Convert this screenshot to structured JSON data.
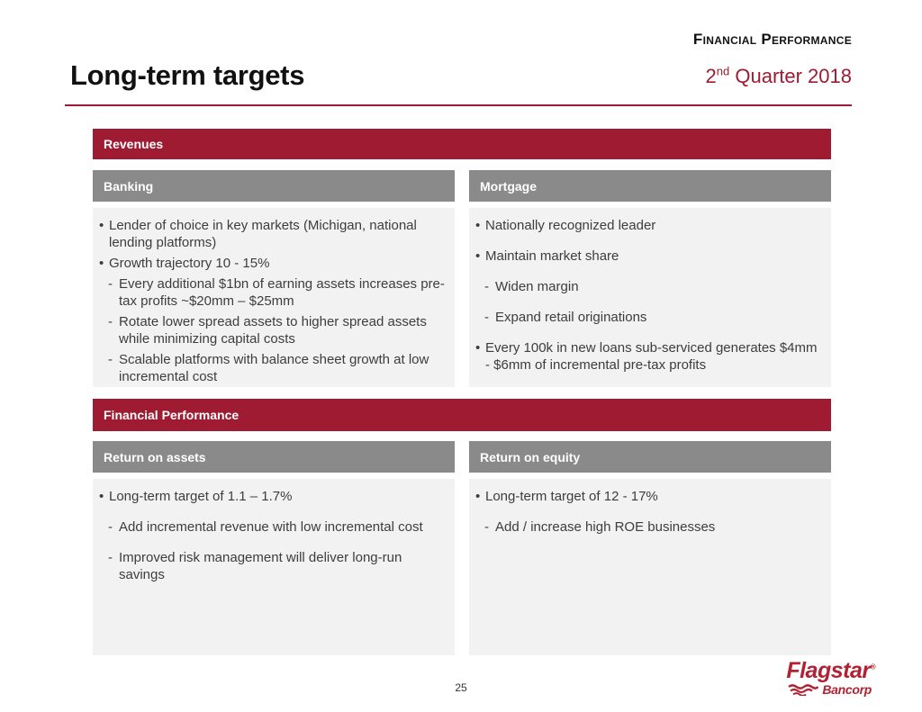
{
  "header": {
    "eyebrow": "Financial Performance",
    "title": "Long-term targets",
    "subtitle_num": "2",
    "subtitle_sup": "nd",
    "subtitle_rest": " Quarter 2018"
  },
  "bullet_glyphs": {
    "1": "•",
    "2": "-"
  },
  "sections": [
    {
      "banner": "Revenues",
      "columns": [
        {
          "header": "Banking",
          "bullets": [
            {
              "level": 1,
              "text": "Lender of choice in key markets (Michigan, national lending platforms)"
            },
            {
              "level": 1,
              "text": "Growth trajectory 10 - 15%"
            },
            {
              "level": 2,
              "text": "Every additional $1bn of earning assets increases pre-tax profits ~$20mm – $25mm"
            },
            {
              "level": 2,
              "text": "Rotate lower spread assets to higher spread assets while minimizing capital costs"
            },
            {
              "level": 2,
              "text": "Scalable platforms with balance sheet growth at low incremental cost"
            }
          ]
        },
        {
          "header": "Mortgage",
          "bullets": [
            {
              "level": 1,
              "text": "Nationally recognized leader"
            },
            {
              "level": 1,
              "text": "Maintain market share"
            },
            {
              "level": 2,
              "text": "Widen margin"
            },
            {
              "level": 2,
              "text": "Expand retail originations"
            },
            {
              "level": 1,
              "text": "Every 100k in new loans sub-serviced generates $4mm - $6mm of incremental pre-tax profits"
            }
          ]
        }
      ]
    },
    {
      "banner": "Financial Performance",
      "columns": [
        {
          "header": "Return on assets",
          "bullets": [
            {
              "level": 1,
              "text": "Long-term target of 1.1 – 1.7%"
            },
            {
              "level": 2,
              "text": "Add incremental revenue with low incremental cost"
            },
            {
              "level": 2,
              "text": "Improved risk management will deliver long-run savings"
            }
          ]
        },
        {
          "header": "Return on equity",
          "bullets": [
            {
              "level": 1,
              "text": "Long-term target of 12 - 17%"
            },
            {
              "level": 2,
              "text": "Add / increase high ROE businesses"
            }
          ]
        }
      ]
    }
  ],
  "footer": {
    "page_number": "25",
    "logo_name": "Flagstar",
    "logo_registered": "®",
    "logo_sub": "Bancorp"
  },
  "colors": {
    "accent_red": "#9E1B32",
    "header_gray": "#8A8A8A",
    "panel_bg": "#F2F2F2",
    "logo_red": "#B22234"
  }
}
